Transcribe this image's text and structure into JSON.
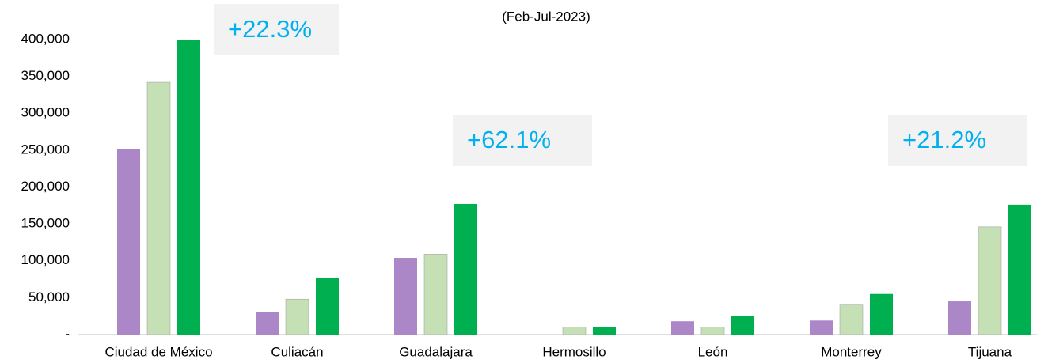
{
  "chart_data": {
    "type": "bar",
    "title": "(Feb-Jul-2023)",
    "categories": [
      "Ciudad de México",
      "Culiacán",
      "Guadalajara",
      "Hermosillo",
      "León",
      "Monterrey",
      "Tijuana"
    ],
    "series": [
      {
        "color": "#ab87c8",
        "values": [
          251000,
          31000,
          104000,
          0,
          18000,
          19000,
          45000
        ]
      },
      {
        "color": "#c5e0b4",
        "values": [
          342000,
          48000,
          109000,
          10000,
          10000,
          40000,
          146000
        ]
      },
      {
        "color": "#00b050",
        "values": [
          400000,
          77000,
          177000,
          10000,
          25000,
          55000,
          176000
        ]
      }
    ],
    "ylim": [
      0,
      400000
    ],
    "yticks": [
      {
        "value": 0,
        "label": "-"
      },
      {
        "value": 50000,
        "label": "50,000"
      },
      {
        "value": 100000,
        "label": "100,000"
      },
      {
        "value": 150000,
        "label": "150,000"
      },
      {
        "value": 200000,
        "label": "200,000"
      },
      {
        "value": 250000,
        "label": "250,000"
      },
      {
        "value": 300000,
        "label": "300,000"
      },
      {
        "value": 350000,
        "label": "350,000"
      },
      {
        "value": 400000,
        "label": "400,000"
      }
    ],
    "grid": false,
    "annotations": [
      "+22.3%",
      "+62.1%",
      "+21.2%"
    ]
  }
}
